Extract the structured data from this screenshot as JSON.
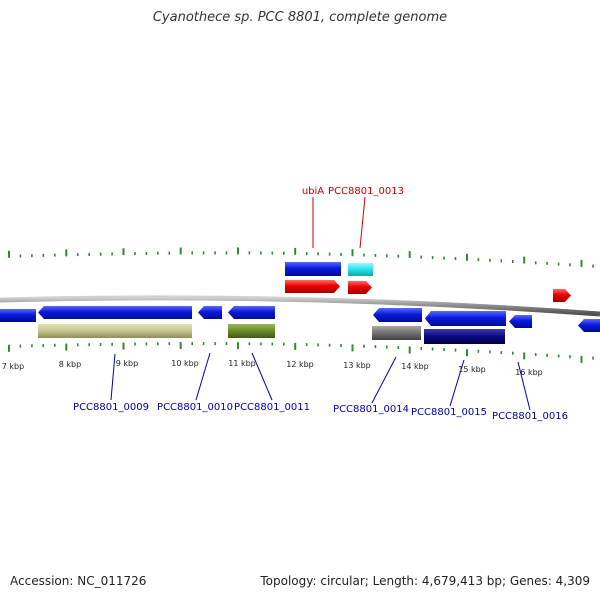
{
  "title": "Cyanothece sp. PCC 8801, complete genome",
  "footer": {
    "accession": "Accession: NC_011726",
    "topology": "Topology: circular; Length: 4,679,413 bp; Genes: 4,309"
  },
  "colors": {
    "backbone": "#8a8a8a",
    "forward_label": "#cc0000",
    "reverse_label": "#0000aa",
    "tick": "#2e8b2e",
    "gene_blue": "#0a1adc",
    "gene_red": "#ee0000",
    "gene_cyan": "#22e0e8",
    "gene_khaki": "#c4c48a",
    "gene_olive": "#6a8a2a",
    "gene_gray": "#707070",
    "gene_navy": "#0a0a80"
  },
  "scale_labels": [
    "7 kbp",
    "8 kbp",
    "9 kbp",
    "10 kbp",
    "11 kbp",
    "12 kbp",
    "13 kbp",
    "14 kbp",
    "15 kbp",
    "16 kbp"
  ],
  "forward_gene_labels": [
    "ubiA",
    "PCC8801_0013"
  ],
  "reverse_gene_labels": [
    "PCC8801_0009",
    "PCC8801_0010",
    "PCC8801_0011",
    "PCC8801_0014",
    "PCC8801_0015",
    "PCC8801_0016"
  ]
}
